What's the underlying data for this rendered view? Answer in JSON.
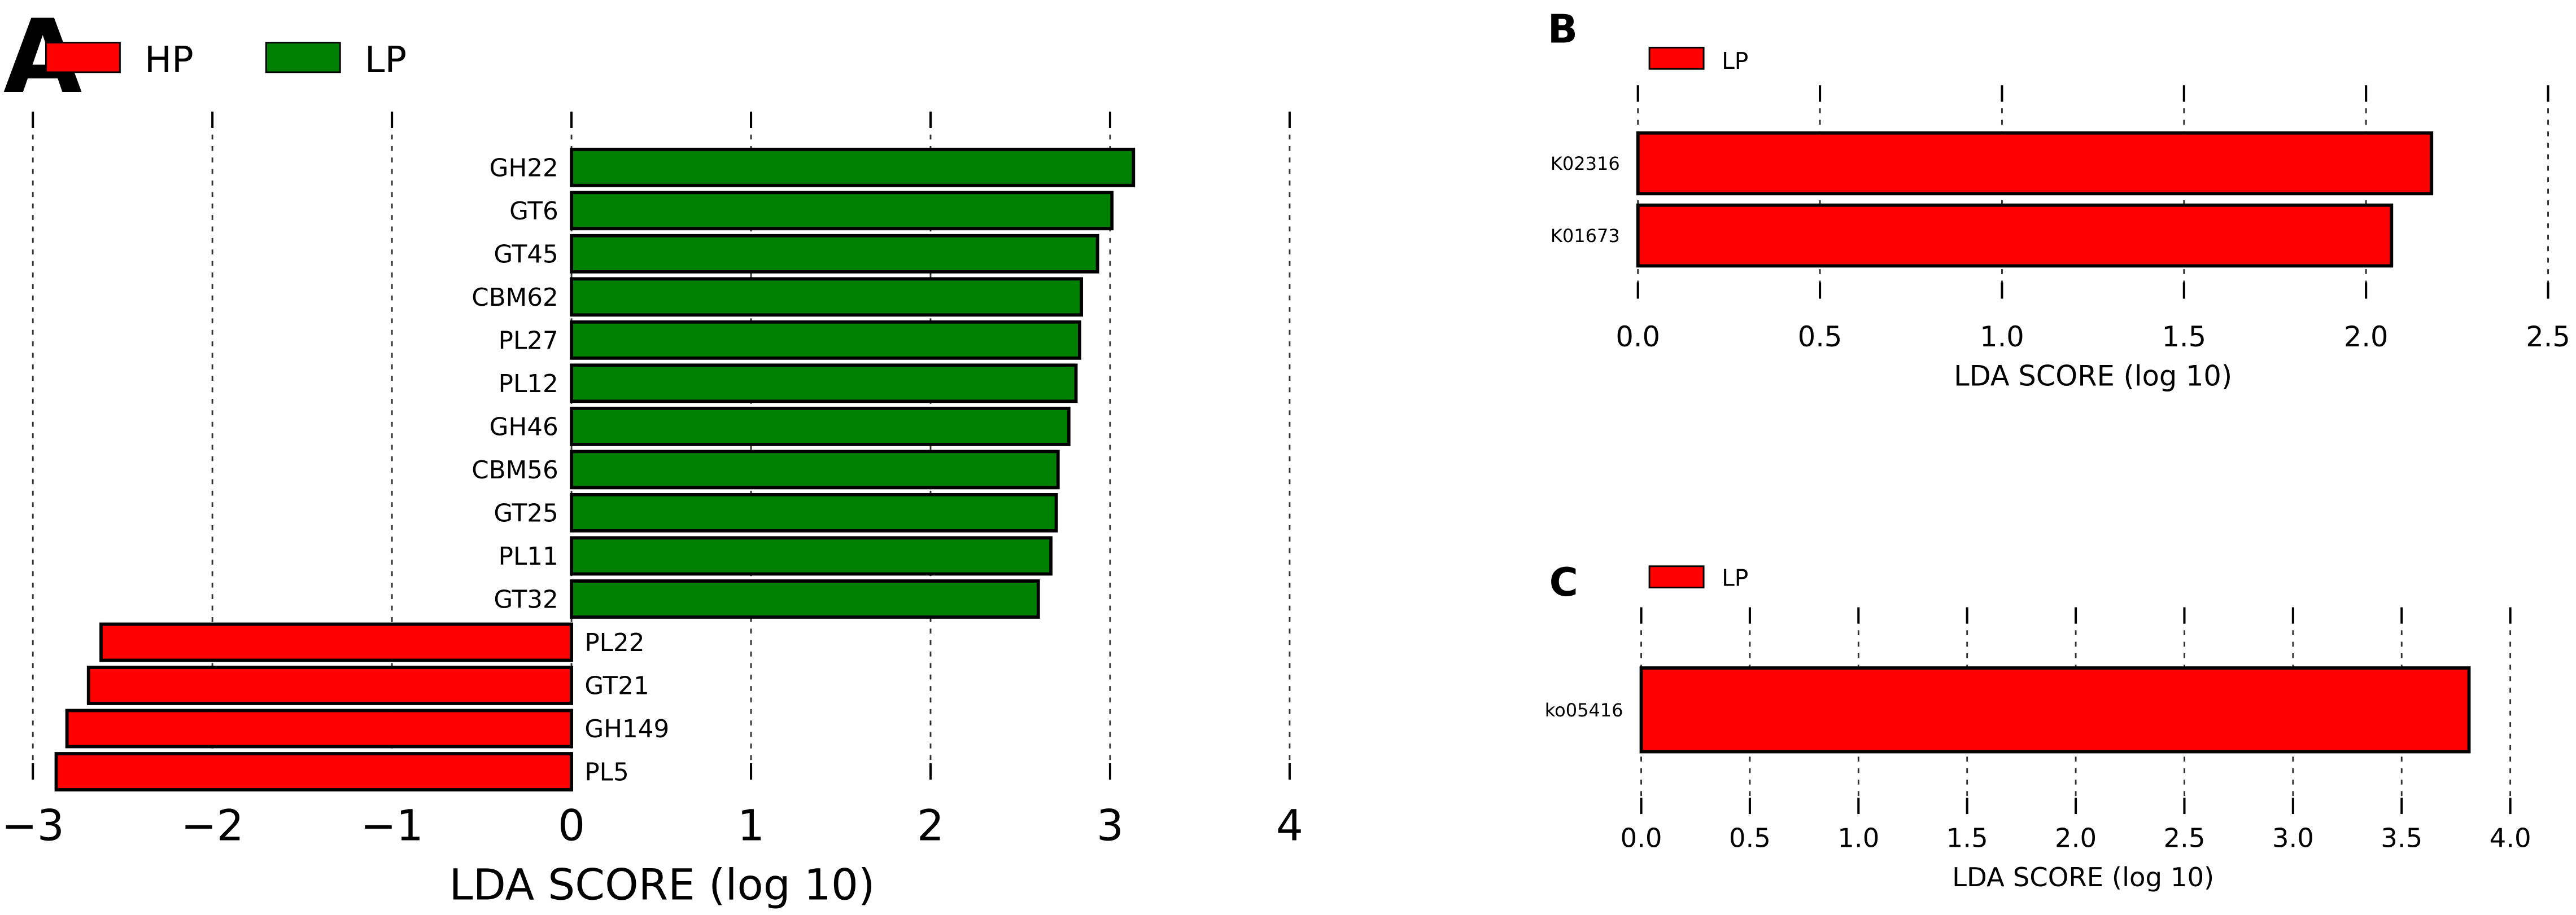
{
  "colors": {
    "hp": "#ff0000",
    "lp": "#008000",
    "bar_stroke": "#000000",
    "grid": "#000000"
  },
  "chart_data": [
    {
      "panel": "A",
      "type": "bar",
      "orientation": "horizontal",
      "xlabel": "LDA SCORE (log 10)",
      "xlim": [
        -3,
        4
      ],
      "xticks": [
        -3,
        -2,
        -1,
        0,
        1,
        2,
        3,
        4
      ],
      "xtick_labels": [
        "−3",
        "−2",
        "−1",
        "0",
        "1",
        "2",
        "3",
        "4"
      ],
      "grid": true,
      "legend": [
        {
          "label": "HP",
          "color": "#ff0000"
        },
        {
          "label": "LP",
          "color": "#008000"
        }
      ],
      "legend_position": "top-left",
      "categories": [
        "GH22",
        "GT6",
        "GT45",
        "CBM62",
        "PL27",
        "PL12",
        "GH46",
        "CBM56",
        "GT25",
        "PL11",
        "GT32",
        "PL22",
        "GT21",
        "GH149",
        "PL5"
      ],
      "values": [
        3.13,
        3.01,
        2.93,
        2.84,
        2.83,
        2.81,
        2.77,
        2.71,
        2.7,
        2.67,
        2.6,
        -2.62,
        -2.69,
        -2.81,
        -2.87
      ],
      "groups": [
        "LP",
        "LP",
        "LP",
        "LP",
        "LP",
        "LP",
        "LP",
        "LP",
        "LP",
        "LP",
        "LP",
        "HP",
        "HP",
        "HP",
        "HP"
      ]
    },
    {
      "panel": "B",
      "type": "bar",
      "orientation": "horizontal",
      "xlabel": "LDA SCORE (log 10)",
      "xlim": [
        0,
        2.5
      ],
      "xticks": [
        0,
        0.5,
        1.0,
        1.5,
        2.0,
        2.5
      ],
      "xtick_labels": [
        "0.0",
        "0.5",
        "1.0",
        "1.5",
        "2.0",
        "2.5"
      ],
      "grid": true,
      "legend": [
        {
          "label": "LP",
          "color": "#ff0000"
        }
      ],
      "legend_position": "top-left",
      "categories": [
        "K02316",
        "K01673"
      ],
      "values": [
        2.18,
        2.07
      ],
      "groups": [
        "LP",
        "LP"
      ]
    },
    {
      "panel": "C",
      "type": "bar",
      "orientation": "horizontal",
      "xlabel": "LDA SCORE (log 10)",
      "xlim": [
        0,
        4.0
      ],
      "xticks": [
        0,
        0.5,
        1.0,
        1.5,
        2.0,
        2.5,
        3.0,
        3.5,
        4.0
      ],
      "xtick_labels": [
        "0.0",
        "0.5",
        "1.0",
        "1.5",
        "2.0",
        "2.5",
        "3.0",
        "3.5",
        "4.0"
      ],
      "grid": true,
      "legend": [
        {
          "label": "LP",
          "color": "#ff0000"
        }
      ],
      "legend_position": "top-left",
      "categories": [
        "ko05416"
      ],
      "values": [
        3.81
      ],
      "groups": [
        "LP"
      ]
    }
  ]
}
